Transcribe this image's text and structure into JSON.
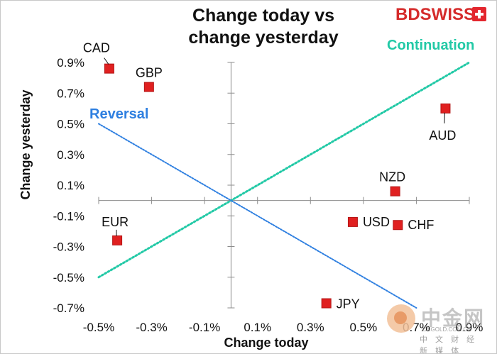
{
  "title_line1": "Change today vs",
  "title_line2": "change yesterday",
  "brand": {
    "text": "BDSWISS",
    "color": "#d52b2b"
  },
  "watermark": {
    "logo_text": "中金网",
    "site": "CNGOLD.COM.CN",
    "tagline": "中 文 财 经 新 媒 体"
  },
  "chart_data": {
    "type": "scatter",
    "xlabel": "Change today",
    "ylabel": "Change yesterday",
    "xlim": [
      -0.5,
      0.9
    ],
    "ylim": [
      -0.7,
      0.9
    ],
    "xticks": [
      -0.5,
      -0.3,
      -0.1,
      0.1,
      0.3,
      0.5,
      0.7,
      0.9
    ],
    "yticks": [
      0.9,
      0.7,
      0.5,
      0.3,
      0.1,
      -0.1,
      -0.3,
      -0.5,
      -0.7
    ],
    "tick_format_suffix": "%",
    "marker_color": "#e02020",
    "points": [
      {
        "label": "CAD",
        "x": -0.46,
        "y": 0.86
      },
      {
        "label": "GBP",
        "x": -0.31,
        "y": 0.74
      },
      {
        "label": "AUD",
        "x": 0.81,
        "y": 0.6
      },
      {
        "label": "NZD",
        "x": 0.62,
        "y": 0.06
      },
      {
        "label": "USD",
        "x": 0.46,
        "y": -0.14
      },
      {
        "label": "CHF",
        "x": 0.63,
        "y": -0.16
      },
      {
        "label": "EUR",
        "x": -0.43,
        "y": -0.26
      },
      {
        "label": "JPY",
        "x": 0.36,
        "y": -0.67
      }
    ],
    "lines": [
      {
        "name": "Continuation",
        "color": "#22c9a6",
        "from": [
          -0.5,
          -0.5
        ],
        "to": [
          0.9,
          0.9
        ]
      },
      {
        "name": "Reversal",
        "color": "#2e7fe0",
        "from": [
          -0.5,
          0.5
        ],
        "to": [
          0.7,
          -0.7
        ]
      }
    ],
    "grid": false
  }
}
